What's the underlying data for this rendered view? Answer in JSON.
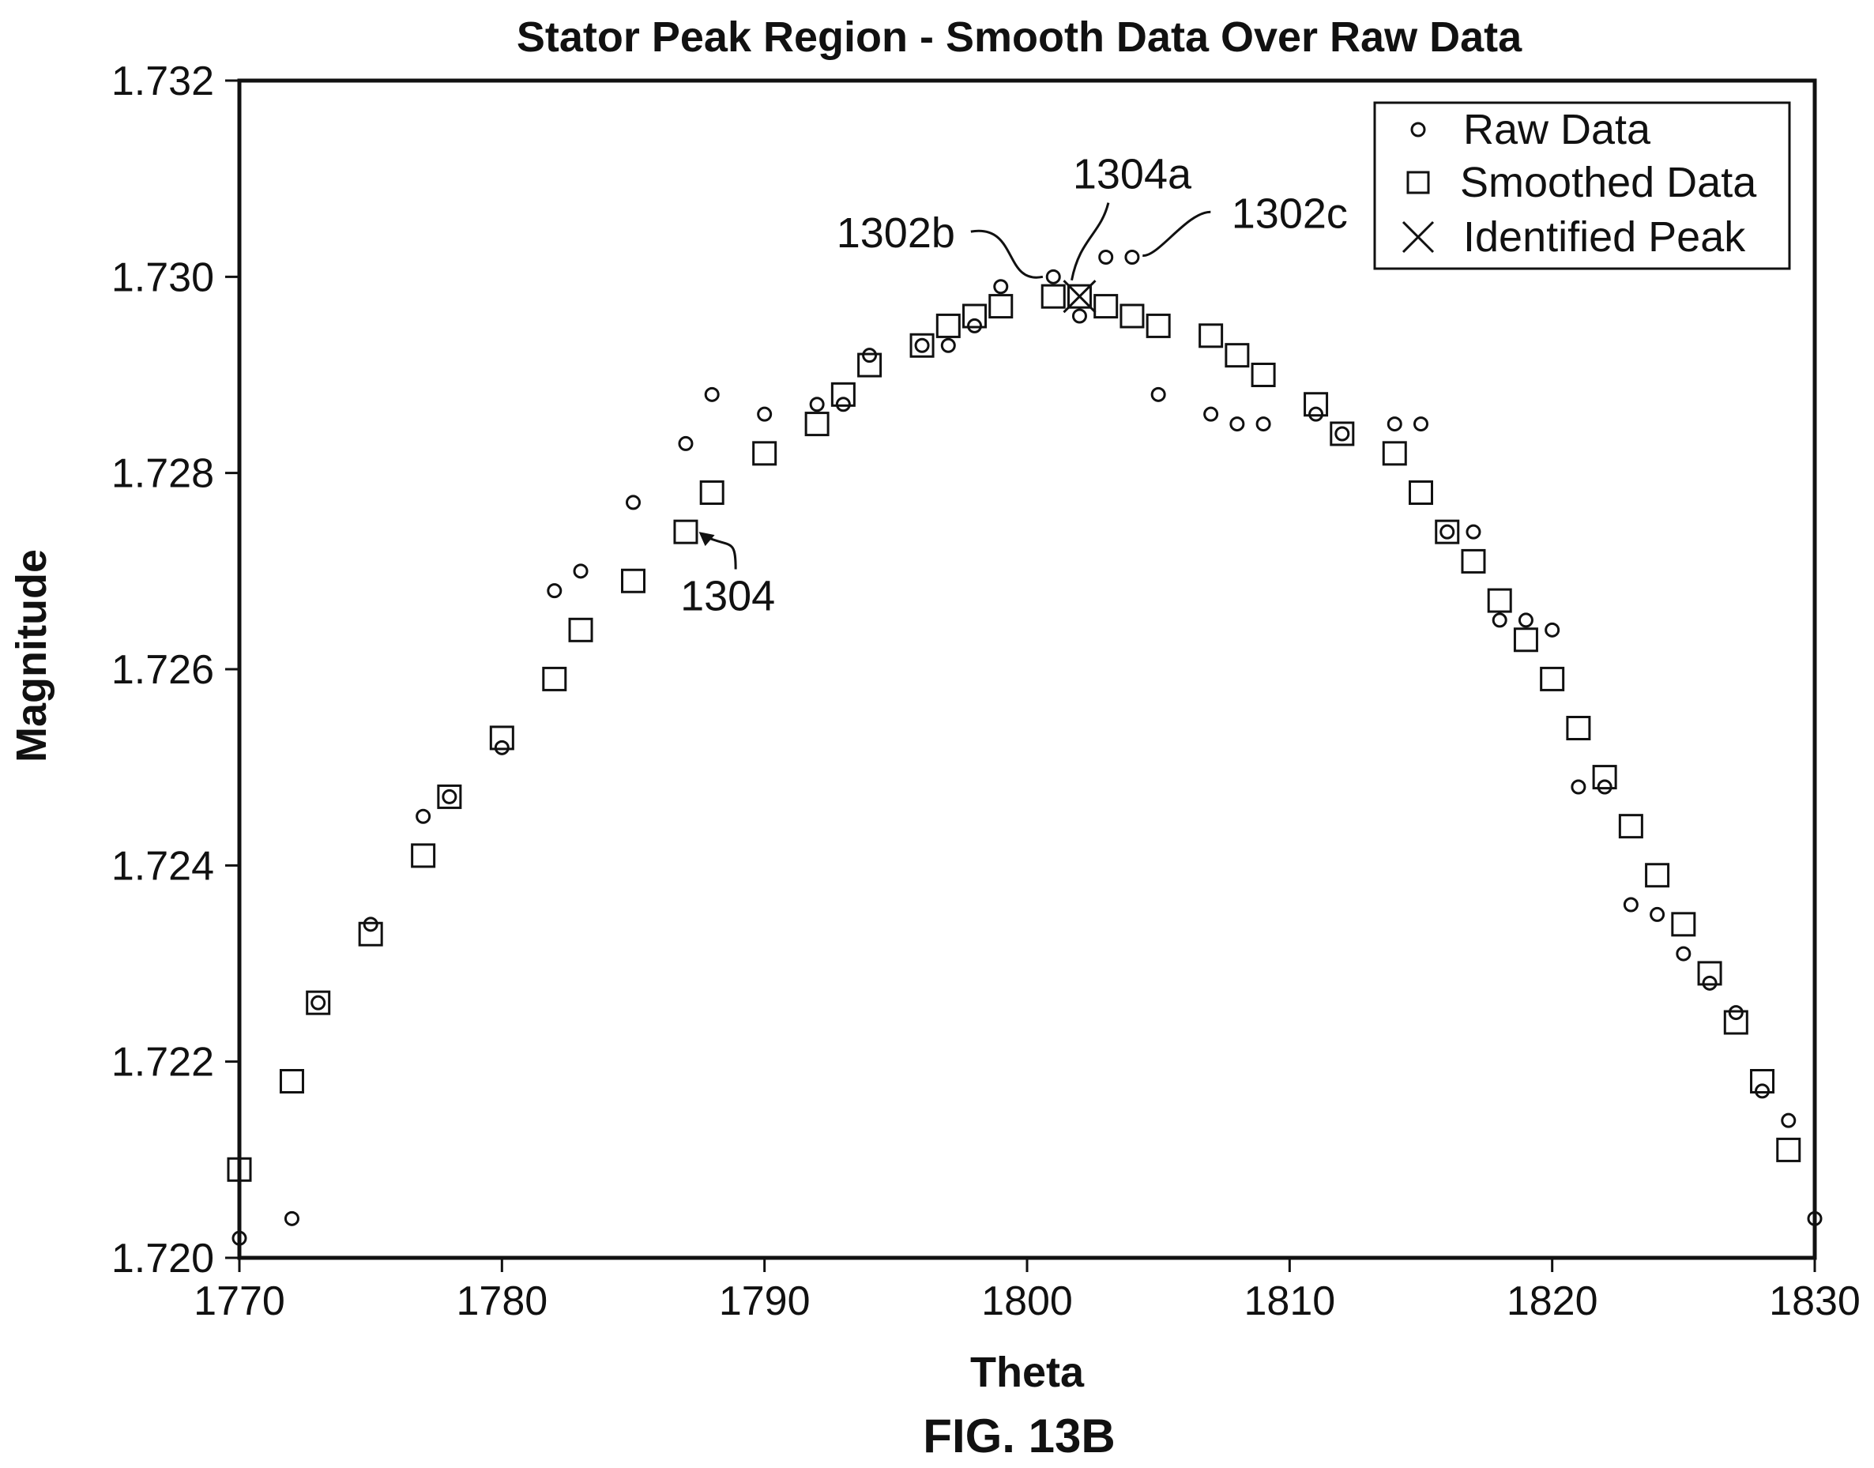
{
  "chart_data": {
    "type": "scatter",
    "title": "Stator Peak Region - Smooth Data Over Raw Data",
    "xlabel": "Theta",
    "ylabel": "Magnitude",
    "xlim": [
      1770,
      1830
    ],
    "ylim": [
      1.72,
      1.732
    ],
    "xticks": [
      1770,
      1780,
      1790,
      1800,
      1810,
      1820,
      1830
    ],
    "xtick_labels": [
      "1770",
      "1780",
      "1790",
      "1800",
      "1810",
      "1820",
      "1830"
    ],
    "yticks": [
      1.72,
      1.722,
      1.724,
      1.726,
      1.728,
      1.73,
      1.732
    ],
    "ytick_labels": [
      "1.720",
      "1.722",
      "1.724",
      "1.726",
      "1.728",
      "1.730",
      "1.732"
    ],
    "grid": false,
    "legend_position": "top-right",
    "series": [
      {
        "name": "Raw Data",
        "marker": "circle",
        "points": [
          [
            1770.0,
            1.7202
          ],
          [
            1772.0,
            1.7204
          ],
          [
            1773.0,
            1.7226
          ],
          [
            1775.0,
            1.7234
          ],
          [
            1777.0,
            1.7245
          ],
          [
            1778.0,
            1.7247
          ],
          [
            1780.0,
            1.7252
          ],
          [
            1782.0,
            1.7268
          ],
          [
            1783.0,
            1.727
          ],
          [
            1785.0,
            1.7277
          ],
          [
            1787.0,
            1.7283
          ],
          [
            1788.0,
            1.7288
          ],
          [
            1790.0,
            1.7286
          ],
          [
            1792.0,
            1.7287
          ],
          [
            1793.0,
            1.7287
          ],
          [
            1794.0,
            1.7292
          ],
          [
            1796.0,
            1.7293
          ],
          [
            1797.0,
            1.7293
          ],
          [
            1798.0,
            1.7295
          ],
          [
            1799.0,
            1.7299
          ],
          [
            1801.0,
            1.73
          ],
          [
            1802.0,
            1.7296
          ],
          [
            1803.0,
            1.7302
          ],
          [
            1804.0,
            1.7302
          ],
          [
            1805.0,
            1.7288
          ],
          [
            1807.0,
            1.7286
          ],
          [
            1808.0,
            1.7285
          ],
          [
            1809.0,
            1.7285
          ],
          [
            1811.0,
            1.7286
          ],
          [
            1812.0,
            1.7284
          ],
          [
            1814.0,
            1.7285
          ],
          [
            1815.0,
            1.7285
          ],
          [
            1816.0,
            1.7274
          ],
          [
            1817.0,
            1.7274
          ],
          [
            1818.0,
            1.7265
          ],
          [
            1819.0,
            1.7265
          ],
          [
            1820.0,
            1.7264
          ],
          [
            1821.0,
            1.7248
          ],
          [
            1822.0,
            1.7248
          ],
          [
            1823.0,
            1.7236
          ],
          [
            1824.0,
            1.7235
          ],
          [
            1825.0,
            1.7231
          ],
          [
            1826.0,
            1.7228
          ],
          [
            1827.0,
            1.7225
          ],
          [
            1828.0,
            1.7217
          ],
          [
            1829.0,
            1.7214
          ],
          [
            1830.0,
            1.7204
          ]
        ]
      },
      {
        "name": "Smoothed Data",
        "marker": "square",
        "points": [
          [
            1770.0,
            1.7209
          ],
          [
            1772.0,
            1.7218
          ],
          [
            1773.0,
            1.7226
          ],
          [
            1775.0,
            1.7233
          ],
          [
            1777.0,
            1.7241
          ],
          [
            1778.0,
            1.7247
          ],
          [
            1780.0,
            1.7253
          ],
          [
            1782.0,
            1.7259
          ],
          [
            1783.0,
            1.7264
          ],
          [
            1785.0,
            1.7269
          ],
          [
            1787.0,
            1.7274
          ],
          [
            1788.0,
            1.7278
          ],
          [
            1790.0,
            1.7282
          ],
          [
            1792.0,
            1.7285
          ],
          [
            1793.0,
            1.7288
          ],
          [
            1794.0,
            1.7291
          ],
          [
            1796.0,
            1.7293
          ],
          [
            1797.0,
            1.7295
          ],
          [
            1798.0,
            1.7296
          ],
          [
            1799.0,
            1.7297
          ],
          [
            1801.0,
            1.7298
          ],
          [
            1802.0,
            1.7298
          ],
          [
            1803.0,
            1.7297
          ],
          [
            1804.0,
            1.7296
          ],
          [
            1805.0,
            1.7295
          ],
          [
            1807.0,
            1.7294
          ],
          [
            1808.0,
            1.7292
          ],
          [
            1809.0,
            1.729
          ],
          [
            1811.0,
            1.7287
          ],
          [
            1812.0,
            1.7284
          ],
          [
            1814.0,
            1.7282
          ],
          [
            1815.0,
            1.7278
          ],
          [
            1816.0,
            1.7274
          ],
          [
            1817.0,
            1.7271
          ],
          [
            1818.0,
            1.7267
          ],
          [
            1819.0,
            1.7263
          ],
          [
            1820.0,
            1.7259
          ],
          [
            1821.0,
            1.7254
          ],
          [
            1822.0,
            1.7249
          ],
          [
            1823.0,
            1.7244
          ],
          [
            1824.0,
            1.7239
          ],
          [
            1825.0,
            1.7234
          ],
          [
            1826.0,
            1.7229
          ],
          [
            1827.0,
            1.7224
          ],
          [
            1828.0,
            1.7218
          ],
          [
            1829.0,
            1.7211
          ]
        ]
      },
      {
        "name": "Identified Peak",
        "marker": "x",
        "points": [
          [
            1802.0,
            1.7298
          ]
        ]
      }
    ],
    "annotations": [
      {
        "text": "1304",
        "x": 1788.6,
        "y": 1.7266,
        "target": [
          1787.5,
          1.7274
        ],
        "arrow": true
      },
      {
        "text": "1304a",
        "x": 1804.0,
        "y": 1.7309,
        "target": [
          1801.7,
          1.7299
        ]
      },
      {
        "text": "1302b",
        "x": 1795.0,
        "y": 1.7303,
        "target": [
          1800.9,
          1.73
        ]
      },
      {
        "text": "1302c",
        "x": 1810.0,
        "y": 1.7305,
        "target": [
          1804.1,
          1.7302
        ]
      }
    ]
  },
  "figure_label": "FIG. 13B"
}
